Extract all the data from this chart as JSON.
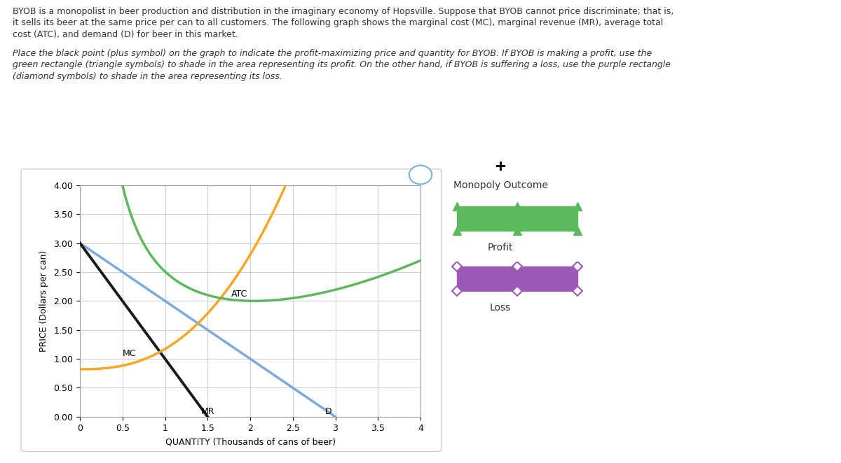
{
  "title_text1": "BYOB is a monopolist in beer production and distribution in the imaginary economy of Hopsville. Suppose that BYOB cannot price discriminate; that is,",
  "title_text2": "it sells its beer at the same price per can to all customers. The following graph shows the marginal cost (MC), marginal revenue (MR), average total",
  "title_text3": "cost (ATC), and demand (D) for beer in this market.",
  "subtitle_text1": "Place the black point (plus symbol) on the graph to indicate the profit-maximizing price and quantity for BYOB. If BYOB is making a profit, use the",
  "subtitle_text2": "green rectangle (triangle symbols) to shade in the area representing its profit. On the other hand, if BYOB is suffering a loss, use the purple rectangle",
  "subtitle_text3": "(diamond symbols) to shade in the area representing its loss.",
  "xlabel": "QUANTITY (Thousands of cans of beer)",
  "ylabel": "PRICE (Dollars per can)",
  "xlim": [
    0,
    4.0
  ],
  "ylim": [
    0,
    4.0
  ],
  "xticks": [
    0,
    0.5,
    1.0,
    1.5,
    2.0,
    2.5,
    3.0,
    3.5,
    4.0
  ],
  "yticks": [
    0,
    0.5,
    1.0,
    1.5,
    2.0,
    2.5,
    3.0,
    3.5,
    4.0
  ],
  "demand_color": "#7aabdc",
  "mr_color": "#1a1a1a",
  "mc_color": "#f5a623",
  "atc_color": "#5cb85c",
  "background_color": "#ffffff",
  "panel_bg": "#f8f8f8",
  "grid_color": "#d0d0d0",
  "legend_profit_color": "#5cb85c",
  "legend_loss_color": "#9b59b6"
}
